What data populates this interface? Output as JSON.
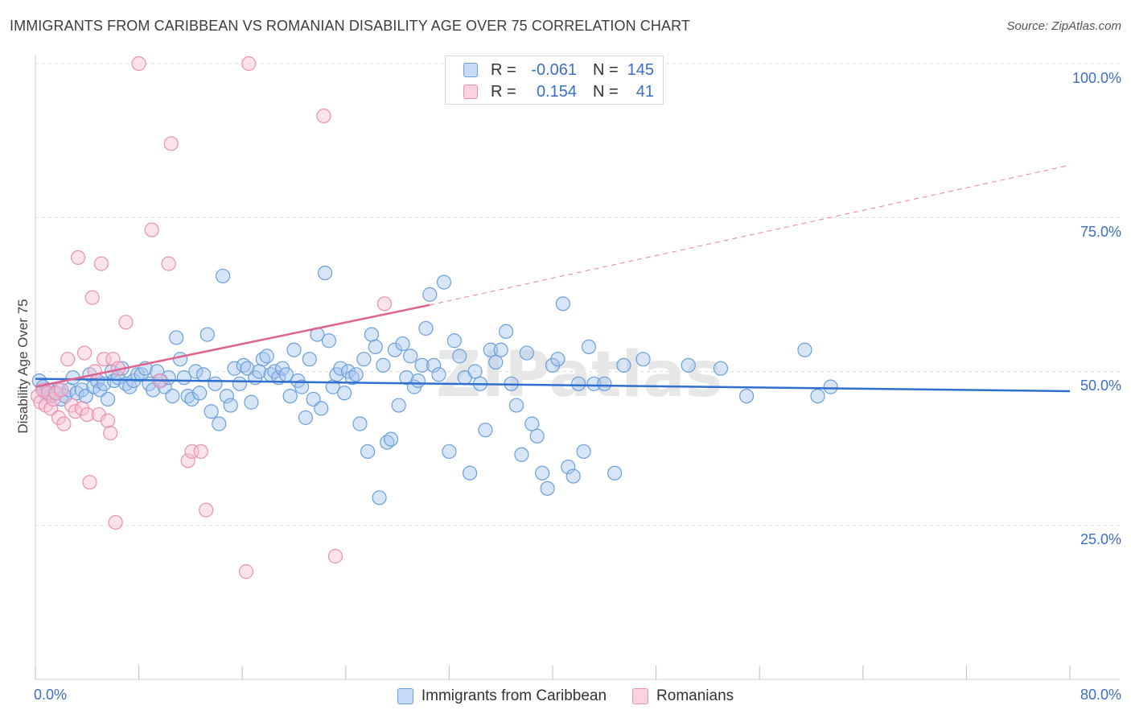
{
  "title": "IMMIGRANTS FROM CARIBBEAN VS ROMANIAN DISABILITY AGE OVER 75 CORRELATION CHART",
  "source": "Source: ZipAtlas.com",
  "legend_top": {
    "rows": [
      {
        "r_label": "R =",
        "r_value": "-0.061",
        "n_label": "N =",
        "n_value": "145"
      },
      {
        "r_label": "R =",
        "r_value": "0.154",
        "n_label": "N =",
        "n_value": "41"
      }
    ]
  },
  "legend_bottom": [
    "Immigrants from Caribbean",
    "Romanians"
  ],
  "axis": {
    "ylabel": "Disability Age Over 75",
    "yticks": [
      "100.0%",
      "75.0%",
      "50.0%",
      "25.0%"
    ],
    "xticks": [
      "0.0%",
      "80.0%"
    ]
  },
  "watermark": "ZIPatlas",
  "colors": {
    "blue_fill": "#a7c6ee",
    "blue_stroke": "#6a9fdc",
    "blue_line": "#2f6fd0",
    "pink_fill": "#f6c0d2",
    "pink_stroke": "#ea8fb0",
    "pink_line": "#e0628f",
    "tick_text": "#3b6fc4",
    "grid": "#dcdcdc"
  },
  "chart_data": {
    "type": "scatter",
    "xlabel": "",
    "ylabel": "Disability Age Over 75",
    "xlim": [
      0,
      80
    ],
    "ylim": [
      0,
      100
    ],
    "grid": true,
    "legend_position": "top-center",
    "series": [
      {
        "name": "Immigrants from Caribbean",
        "r": -0.061,
        "n": 145,
        "trend": {
          "x": [
            0,
            80
          ],
          "y": [
            48.8,
            46.8
          ],
          "style": "solid"
        },
        "points": [
          [
            0.3,
            48.5
          ],
          [
            0.6,
            47.5
          ],
          [
            0.8,
            46.5
          ],
          [
            1.0,
            47.0
          ],
          [
            1.2,
            46.0
          ],
          [
            1.5,
            46.5
          ],
          [
            1.8,
            47.0
          ],
          [
            2.0,
            45.5
          ],
          [
            2.3,
            46.0
          ],
          [
            2.6,
            47.0
          ],
          [
            2.9,
            49.0
          ],
          [
            3.2,
            46.5
          ],
          [
            3.6,
            47.0
          ],
          [
            3.9,
            46.0
          ],
          [
            4.2,
            49.5
          ],
          [
            4.5,
            47.5
          ],
          [
            4.8,
            48.5
          ],
          [
            5.0,
            47.0
          ],
          [
            5.3,
            48.0
          ],
          [
            5.6,
            45.5
          ],
          [
            5.9,
            50.0
          ],
          [
            6.1,
            48.5
          ],
          [
            6.4,
            49.0
          ],
          [
            6.7,
            50.5
          ],
          [
            7.0,
            48.0
          ],
          [
            7.3,
            47.5
          ],
          [
            7.6,
            48.5
          ],
          [
            7.9,
            49.5
          ],
          [
            8.2,
            49.5
          ],
          [
            8.5,
            50.5
          ],
          [
            8.8,
            48.0
          ],
          [
            9.1,
            47.0
          ],
          [
            9.4,
            50.0
          ],
          [
            9.7,
            48.5
          ],
          [
            10.0,
            47.5
          ],
          [
            10.3,
            49.0
          ],
          [
            10.6,
            46.0
          ],
          [
            10.9,
            55.5
          ],
          [
            11.2,
            52.0
          ],
          [
            11.5,
            49.0
          ],
          [
            11.8,
            46.0
          ],
          [
            12.1,
            45.5
          ],
          [
            12.4,
            50.0
          ],
          [
            12.7,
            46.5
          ],
          [
            13.0,
            49.5
          ],
          [
            13.3,
            56.0
          ],
          [
            13.6,
            43.5
          ],
          [
            13.9,
            48.0
          ],
          [
            14.2,
            41.5
          ],
          [
            14.5,
            65.5
          ],
          [
            14.8,
            46.0
          ],
          [
            15.1,
            44.5
          ],
          [
            15.4,
            50.5
          ],
          [
            15.8,
            48.0
          ],
          [
            16.1,
            51.0
          ],
          [
            16.4,
            50.5
          ],
          [
            16.7,
            45.0
          ],
          [
            17.0,
            49.0
          ],
          [
            17.3,
            50.0
          ],
          [
            17.6,
            52.0
          ],
          [
            17.9,
            52.5
          ],
          [
            18.2,
            49.5
          ],
          [
            18.5,
            50.0
          ],
          [
            18.8,
            49.0
          ],
          [
            19.1,
            50.5
          ],
          [
            19.4,
            49.5
          ],
          [
            19.7,
            46.0
          ],
          [
            20.0,
            53.5
          ],
          [
            20.3,
            48.5
          ],
          [
            20.6,
            47.5
          ],
          [
            20.9,
            42.5
          ],
          [
            21.2,
            52.0
          ],
          [
            21.5,
            45.5
          ],
          [
            21.8,
            56.0
          ],
          [
            22.1,
            44.0
          ],
          [
            22.4,
            66.0
          ],
          [
            22.7,
            55.0
          ],
          [
            23.0,
            47.5
          ],
          [
            23.3,
            49.5
          ],
          [
            23.6,
            50.5
          ],
          [
            23.9,
            46.5
          ],
          [
            24.2,
            50.0
          ],
          [
            24.5,
            49.0
          ],
          [
            24.8,
            49.5
          ],
          [
            25.1,
            41.5
          ],
          [
            25.4,
            52.0
          ],
          [
            25.7,
            37.0
          ],
          [
            26.0,
            56.0
          ],
          [
            26.3,
            54.0
          ],
          [
            26.6,
            29.5
          ],
          [
            26.9,
            51.0
          ],
          [
            27.2,
            38.5
          ],
          [
            27.5,
            39.0
          ],
          [
            27.8,
            53.5
          ],
          [
            28.1,
            44.5
          ],
          [
            28.4,
            54.5
          ],
          [
            28.7,
            49.0
          ],
          [
            29.0,
            52.5
          ],
          [
            29.3,
            47.5
          ],
          [
            29.6,
            48.5
          ],
          [
            29.9,
            51.0
          ],
          [
            30.2,
            57.0
          ],
          [
            30.5,
            62.5
          ],
          [
            30.8,
            51.0
          ],
          [
            31.2,
            49.5
          ],
          [
            31.6,
            64.5
          ],
          [
            32.0,
            37.0
          ],
          [
            32.4,
            55.0
          ],
          [
            32.8,
            52.5
          ],
          [
            33.2,
            49.0
          ],
          [
            33.6,
            33.5
          ],
          [
            34.0,
            50.0
          ],
          [
            34.4,
            48.0
          ],
          [
            34.8,
            40.5
          ],
          [
            35.2,
            53.5
          ],
          [
            35.6,
            51.5
          ],
          [
            36.0,
            53.5
          ],
          [
            36.4,
            56.5
          ],
          [
            36.8,
            48.0
          ],
          [
            37.2,
            44.5
          ],
          [
            37.6,
            36.5
          ],
          [
            38.0,
            53.0
          ],
          [
            38.4,
            41.5
          ],
          [
            38.8,
            39.5
          ],
          [
            39.2,
            33.5
          ],
          [
            39.6,
            31.0
          ],
          [
            40.0,
            51.0
          ],
          [
            40.4,
            52.0
          ],
          [
            40.8,
            61.0
          ],
          [
            41.2,
            34.5
          ],
          [
            41.6,
            33.0
          ],
          [
            42.0,
            48.0
          ],
          [
            42.4,
            37.0
          ],
          [
            42.8,
            54.0
          ],
          [
            43.2,
            48.0
          ],
          [
            44.0,
            48.0
          ],
          [
            44.8,
            33.5
          ],
          [
            45.5,
            51.0
          ],
          [
            47.0,
            52.0
          ],
          [
            50.5,
            51.0
          ],
          [
            53.0,
            50.5
          ],
          [
            55.0,
            46.0
          ],
          [
            59.5,
            53.5
          ],
          [
            60.5,
            46.0
          ],
          [
            61.5,
            47.5
          ]
        ]
      },
      {
        "name": "Romanians",
        "r": 0.154,
        "n": 41,
        "trend": {
          "x": [
            0,
            30.5
          ],
          "y": [
            47.5,
            60.8
          ],
          "style": "solid",
          "dashed_extension_to": [
            80,
            83.5
          ]
        },
        "points": [
          [
            0.2,
            46.0
          ],
          [
            0.4,
            45.0
          ],
          [
            0.6,
            47.0
          ],
          [
            0.8,
            44.5
          ],
          [
            1.0,
            46.5
          ],
          [
            1.2,
            44.0
          ],
          [
            1.4,
            45.5
          ],
          [
            1.6,
            46.5
          ],
          [
            1.8,
            42.5
          ],
          [
            2.0,
            47.0
          ],
          [
            2.2,
            41.5
          ],
          [
            2.5,
            52.0
          ],
          [
            2.8,
            44.5
          ],
          [
            3.1,
            43.5
          ],
          [
            3.3,
            68.5
          ],
          [
            3.6,
            44.0
          ],
          [
            3.8,
            53.0
          ],
          [
            4.0,
            43.0
          ],
          [
            4.2,
            32.0
          ],
          [
            4.4,
            62.0
          ],
          [
            4.6,
            50.0
          ],
          [
            4.9,
            43.0
          ],
          [
            5.1,
            67.5
          ],
          [
            5.3,
            52.0
          ],
          [
            5.6,
            42.0
          ],
          [
            5.8,
            40.0
          ],
          [
            6.0,
            52.0
          ],
          [
            6.2,
            25.5
          ],
          [
            6.4,
            50.5
          ],
          [
            7.0,
            58.0
          ],
          [
            8.0,
            100.0
          ],
          [
            9.0,
            73.0
          ],
          [
            9.6,
            48.5
          ],
          [
            10.3,
            67.5
          ],
          [
            10.5,
            87.0
          ],
          [
            11.8,
            35.5
          ],
          [
            12.1,
            37.0
          ],
          [
            12.8,
            37.0
          ],
          [
            13.2,
            27.5
          ],
          [
            16.5,
            100.0
          ],
          [
            16.3,
            17.5
          ],
          [
            22.3,
            91.5
          ],
          [
            23.2,
            20.0
          ],
          [
            27.0,
            61.0
          ]
        ]
      }
    ]
  }
}
